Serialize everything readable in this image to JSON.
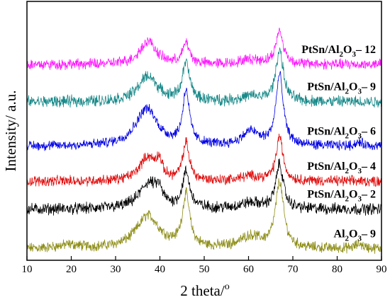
{
  "chart_data": {
    "type": "line",
    "xlabel": "2 theta/",
    "xlabel_sup": "o",
    "ylabel": "Intensity/ a.u.",
    "xlim": [
      10,
      90
    ],
    "xticks": [
      10,
      20,
      30,
      40,
      50,
      60,
      70,
      80,
      90
    ],
    "yticks": "none",
    "grid": false,
    "legend": "inline-right",
    "series": [
      {
        "label_parts": [
          [
            "Al",
            ""
          ],
          [
            "2",
            "sub"
          ],
          [
            "O",
            ""
          ],
          [
            "3",
            "sub"
          ],
          [
            "– 9",
            ""
          ]
        ],
        "color": "#8f8f1a",
        "baseline": 0.0,
        "noise": 0.018,
        "peaks": [
          [
            37.3,
            0.14,
            3.2
          ],
          [
            45.9,
            0.22,
            1.0
          ],
          [
            67.0,
            0.28,
            1.1
          ],
          [
            60.5,
            0.05,
            3.0
          ],
          [
            19.5,
            0.015,
            3.0
          ],
          [
            85.0,
            0.02,
            1.0
          ]
        ]
      },
      {
        "label_parts": [
          [
            "PtSn/Al",
            ""
          ],
          [
            "2",
            "sub"
          ],
          [
            "O",
            ""
          ],
          [
            "3",
            "sub"
          ],
          [
            "– 2",
            ""
          ]
        ],
        "color": "#000000",
        "baseline": 0.17,
        "noise": 0.02,
        "peaks": [
          [
            37.5,
            0.11,
            2.6
          ],
          [
            39.8,
            0.05,
            0.8
          ],
          [
            45.9,
            0.15,
            1.0
          ],
          [
            67.0,
            0.19,
            1.0
          ],
          [
            60.5,
            0.025,
            3.0
          ]
        ]
      },
      {
        "label_parts": [
          [
            "PtSn/Al",
            ""
          ],
          [
            "2",
            "sub"
          ],
          [
            "O",
            ""
          ],
          [
            "3",
            "sub"
          ],
          [
            "– 4",
            ""
          ]
        ],
        "color": "#e01010",
        "baseline": 0.29,
        "noise": 0.018,
        "peaks": [
          [
            37.2,
            0.1,
            2.2
          ],
          [
            39.8,
            0.07,
            0.8
          ],
          [
            45.9,
            0.16,
            0.9
          ],
          [
            67.0,
            0.19,
            0.9
          ],
          [
            60.5,
            0.02,
            3.0
          ]
        ]
      },
      {
        "label_parts": [
          [
            "PtSn/Al",
            ""
          ],
          [
            "2",
            "sub"
          ],
          [
            "O",
            ""
          ],
          [
            "3",
            "sub"
          ],
          [
            "– 6",
            ""
          ]
        ],
        "color": "#0000e6",
        "baseline": 0.44,
        "noise": 0.017,
        "peaks": [
          [
            37.0,
            0.16,
            3.0
          ],
          [
            45.9,
            0.23,
            0.9
          ],
          [
            67.0,
            0.3,
            1.0
          ],
          [
            60.5,
            0.06,
            2.2
          ],
          [
            85.0,
            0.015,
            1.0
          ]
        ]
      },
      {
        "label_parts": [
          [
            "PtSn/Al",
            ""
          ],
          [
            "2",
            "sub"
          ],
          [
            "O",
            ""
          ],
          [
            "3",
            "sub"
          ],
          [
            "– 9",
            ""
          ]
        ],
        "color": "#1a8a8a",
        "baseline": 0.63,
        "noise": 0.02,
        "peaks": [
          [
            37.3,
            0.11,
            2.6
          ],
          [
            45.9,
            0.16,
            1.0
          ],
          [
            67.0,
            0.22,
            1.0
          ],
          [
            60.5,
            0.02,
            3.0
          ]
        ]
      },
      {
        "label_parts": [
          [
            "PtSn/Al",
            ""
          ],
          [
            "2",
            "sub"
          ],
          [
            "O",
            ""
          ],
          [
            "3",
            "sub"
          ],
          [
            "– 12",
            ""
          ]
        ],
        "color": "#ff1aff",
        "baseline": 0.79,
        "noise": 0.018,
        "peaks": [
          [
            37.3,
            0.1,
            2.2
          ],
          [
            45.9,
            0.09,
            0.9
          ],
          [
            67.0,
            0.14,
            1.0
          ],
          [
            60.5,
            0.02,
            3.0
          ]
        ]
      }
    ]
  }
}
